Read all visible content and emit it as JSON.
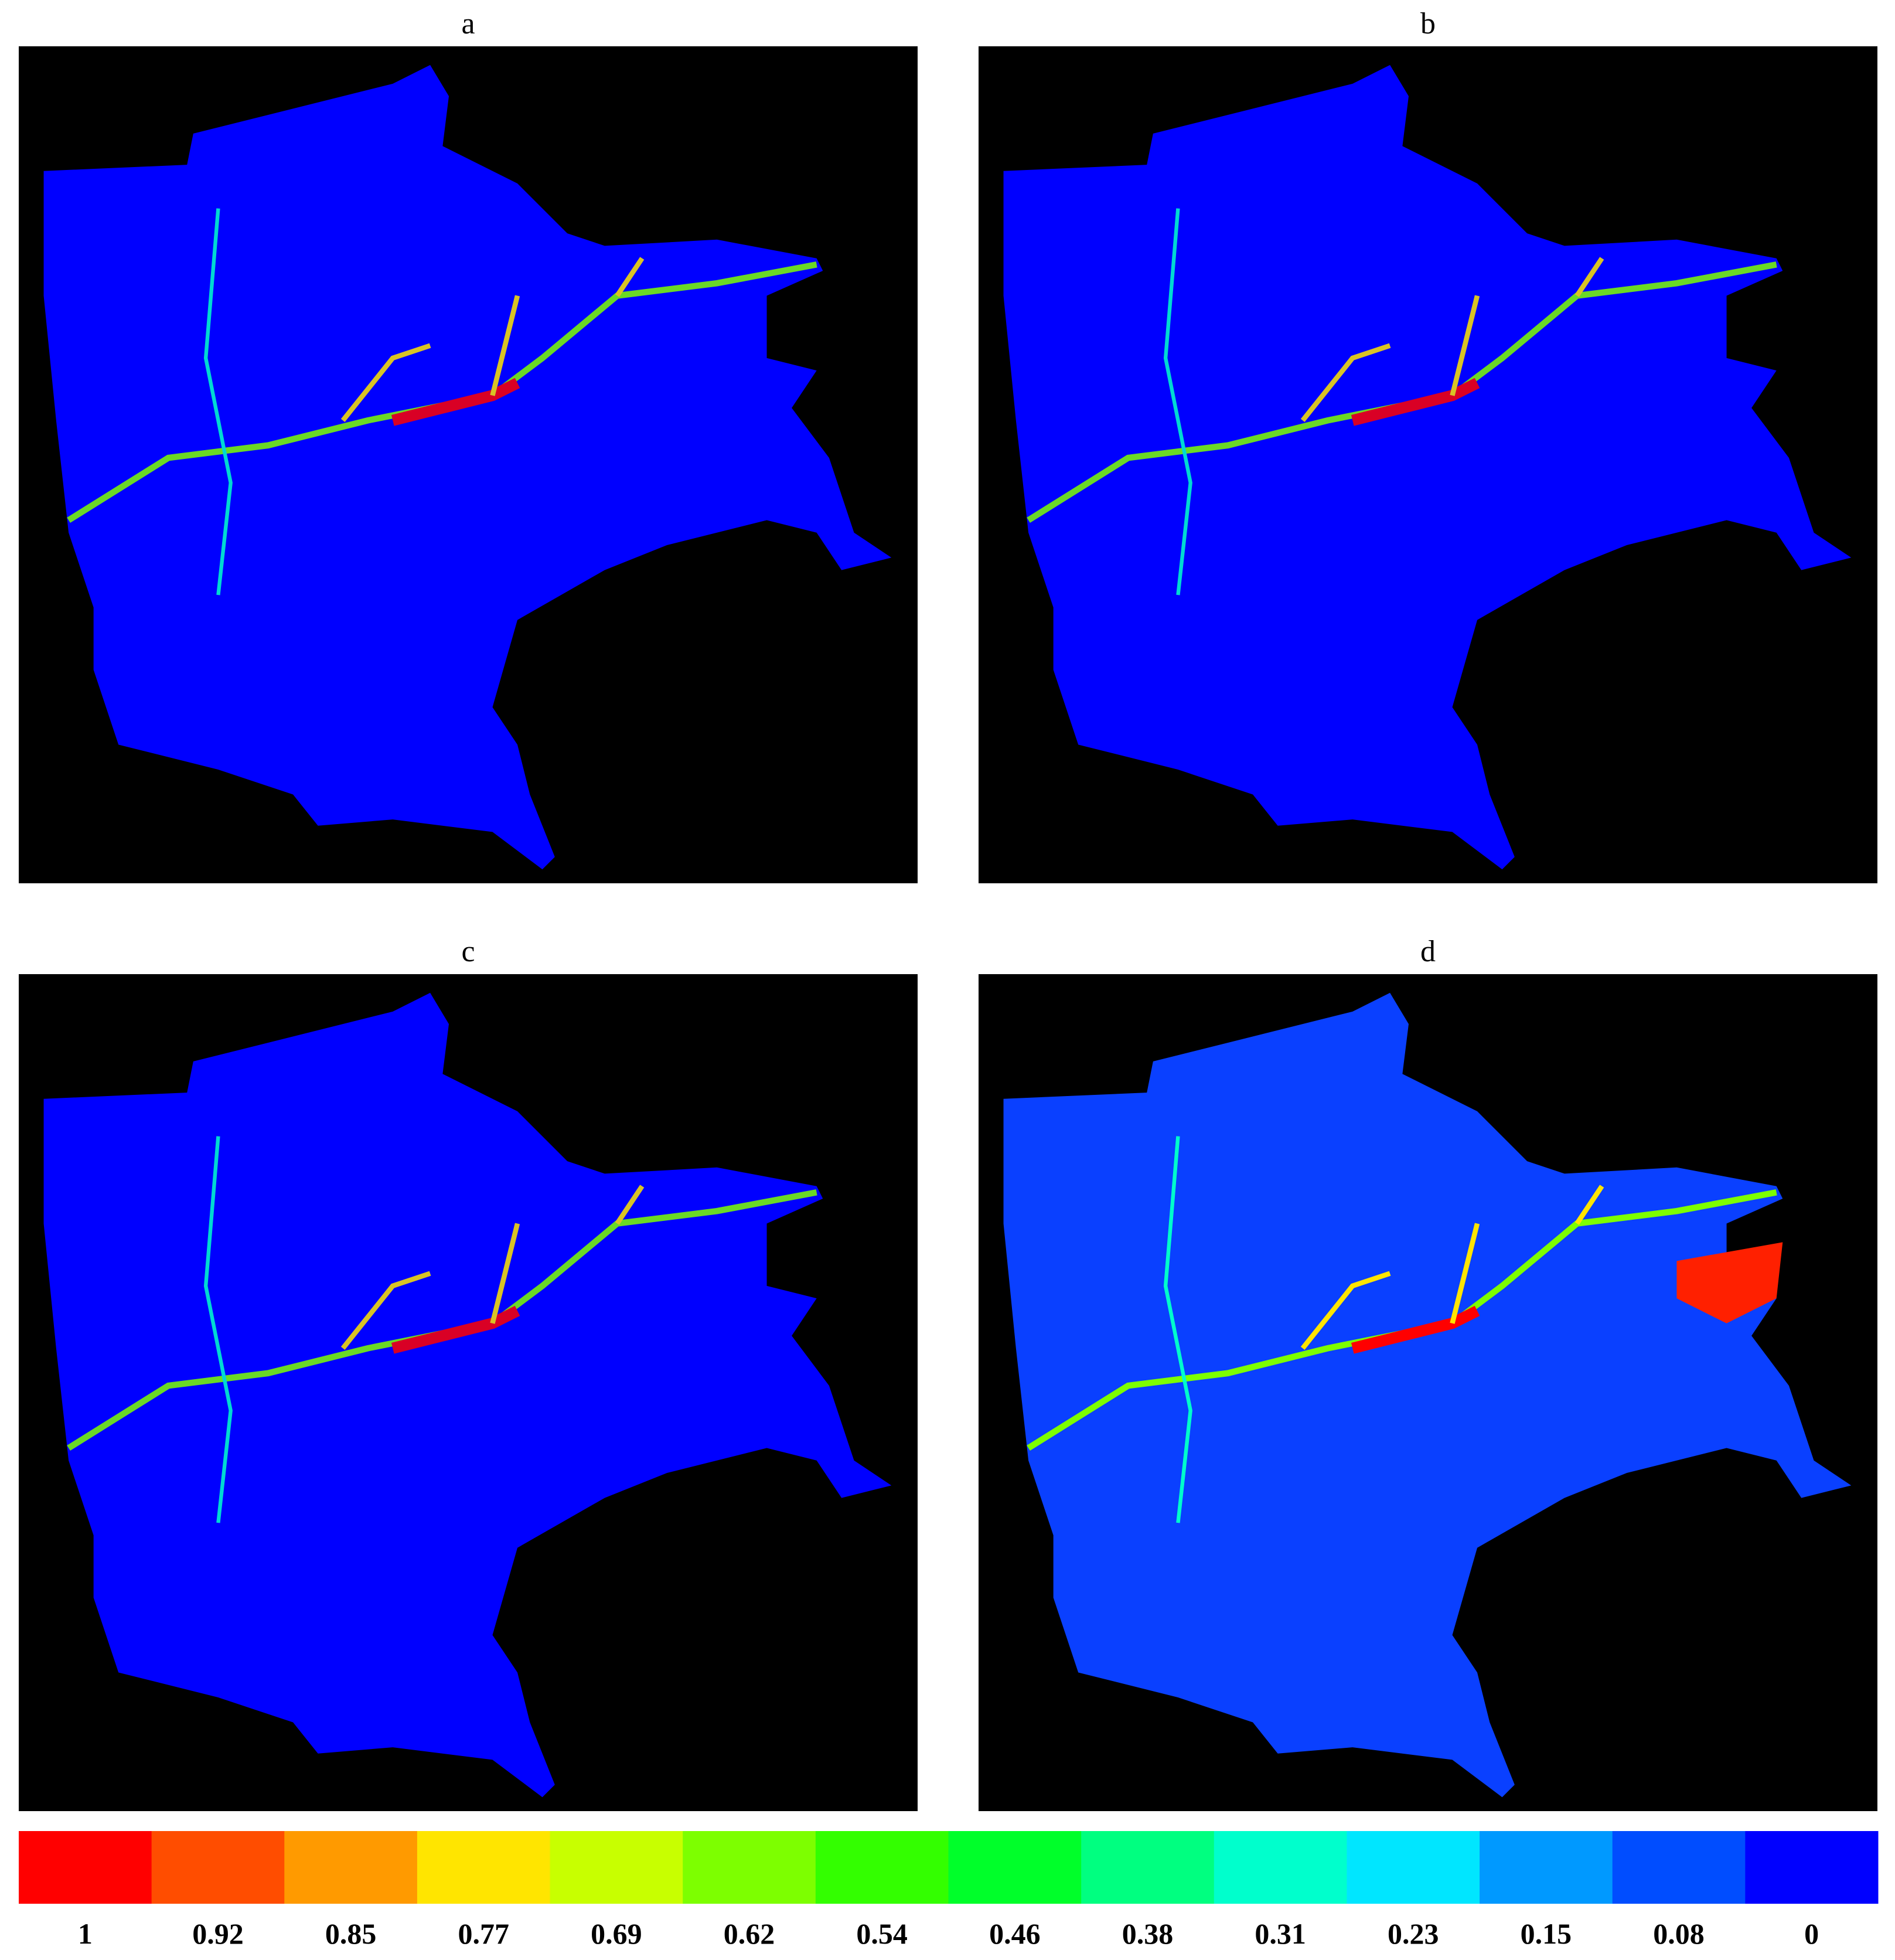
{
  "panels": [
    {
      "title": "a"
    },
    {
      "title": "b"
    },
    {
      "title": "c"
    },
    {
      "title": "d"
    }
  ],
  "colorbar": {
    "ticks": [
      1,
      0.92,
      0.85,
      0.77,
      0.69,
      0.62,
      0.54,
      0.46,
      0.38,
      0.31,
      0.23,
      0.15,
      0.08,
      0
    ],
    "colors": [
      "#ff0000",
      "#ff4d00",
      "#ff9a00",
      "#ffe500",
      "#c8ff00",
      "#7dff00",
      "#33ff00",
      "#00ff2a",
      "#00ff80",
      "#00ffcc",
      "#00e6ff",
      "#0099ff",
      "#004dff",
      "#0000ff"
    ]
  }
}
